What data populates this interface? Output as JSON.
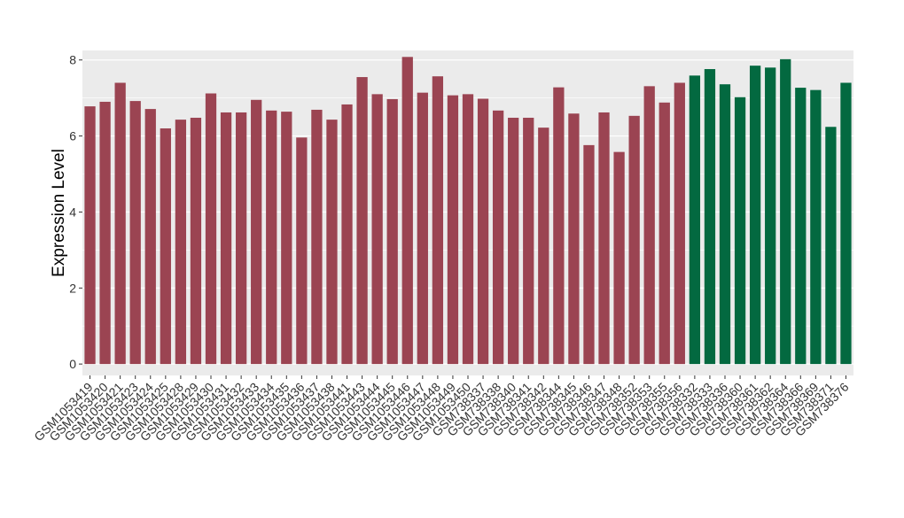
{
  "chart_data": {
    "type": "bar",
    "title": "",
    "xlabel": "",
    "ylabel": "Expression Level",
    "ylim": [
      -0.3,
      8.25
    ],
    "yticks": [
      0,
      2,
      4,
      6,
      8
    ],
    "grid": true,
    "colors": {
      "group1": "#9b4452",
      "group2": "#036940",
      "panel": "#ebebeb",
      "gridline": "#ffffff"
    },
    "categories": [
      "GSM1053419",
      "GSM1053420",
      "GSM1053421",
      "GSM1053423",
      "GSM1053424",
      "GSM1053425",
      "GSM1053428",
      "GSM1053429",
      "GSM1053430",
      "GSM1053431",
      "GSM1053432",
      "GSM1053433",
      "GSM1053434",
      "GSM1053435",
      "GSM1053436",
      "GSM1053437",
      "GSM1053438",
      "GSM1053441",
      "GSM1053443",
      "GSM1053444",
      "GSM1053445",
      "GSM1053446",
      "GSM1053447",
      "GSM1053448",
      "GSM1053449",
      "GSM1053450",
      "GSM738337",
      "GSM738338",
      "GSM738340",
      "GSM738341",
      "GSM738342",
      "GSM738344",
      "GSM738345",
      "GSM738346",
      "GSM738347",
      "GSM738348",
      "GSM738352",
      "GSM738353",
      "GSM738355",
      "GSM738356",
      "GSM738332",
      "GSM738333",
      "GSM738336",
      "GSM738360",
      "GSM738361",
      "GSM738362",
      "GSM738364",
      "GSM738366",
      "GSM738369",
      "GSM738371",
      "GSM738376"
    ],
    "values": [
      6.78,
      6.9,
      7.4,
      6.92,
      6.71,
      6.2,
      6.43,
      6.48,
      7.12,
      6.62,
      6.62,
      6.95,
      6.67,
      6.64,
      5.96,
      6.69,
      6.43,
      6.83,
      7.55,
      7.1,
      6.97,
      8.08,
      7.14,
      7.57,
      7.07,
      7.1,
      6.98,
      6.67,
      6.48,
      6.48,
      6.22,
      7.28,
      6.59,
      5.76,
      6.62,
      5.58,
      6.53,
      7.31,
      6.88,
      7.4,
      7.59,
      7.76,
      7.36,
      7.02,
      7.85,
      7.8,
      8.02,
      7.27,
      7.21,
      6.24,
      7.4
    ],
    "groups": [
      1,
      1,
      1,
      1,
      1,
      1,
      1,
      1,
      1,
      1,
      1,
      1,
      1,
      1,
      1,
      1,
      1,
      1,
      1,
      1,
      1,
      1,
      1,
      1,
      1,
      1,
      1,
      1,
      1,
      1,
      1,
      1,
      1,
      1,
      1,
      1,
      1,
      1,
      1,
      1,
      2,
      2,
      2,
      2,
      2,
      2,
      2,
      2,
      2,
      2,
      2
    ]
  }
}
